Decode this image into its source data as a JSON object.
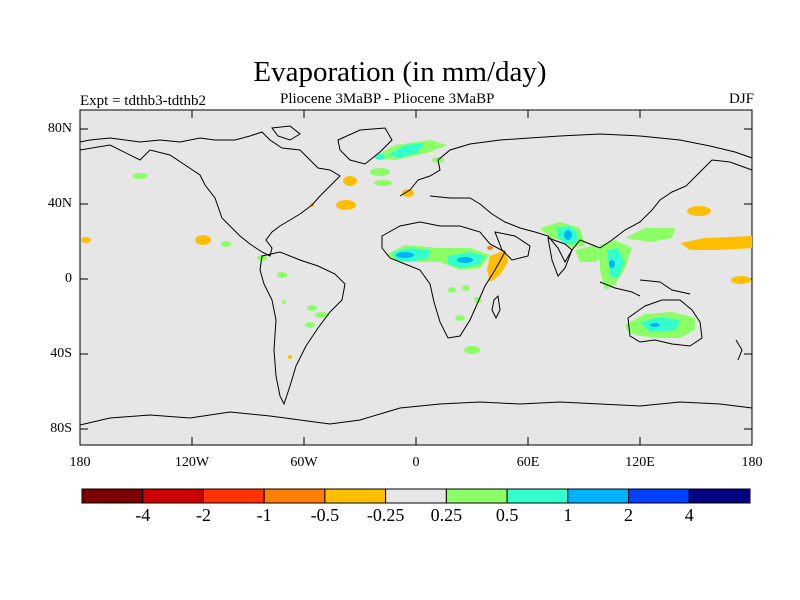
{
  "title": "Evaporation (in mm/day)",
  "experiment_label": "Expt = tdthb3-tdthb2",
  "subtitle": "Pliocene   3MaBP - Pliocene   3MaBP",
  "season": "DJF",
  "lat_ticks": [
    "80N",
    "40N",
    "0",
    "40S",
    "80S"
  ],
  "lon_ticks": [
    "180",
    "120W",
    "60W",
    "0",
    "60E",
    "120E",
    "180"
  ],
  "colorbar": {
    "colors": [
      "#7a0000",
      "#cc0000",
      "#ff3300",
      "#ff7f00",
      "#ffbf00",
      "#e6e6e6",
      "#8cff66",
      "#33ffcc",
      "#00b3ff",
      "#0040ff",
      "#000080"
    ],
    "labels": [
      "-4",
      "-2",
      "-1",
      "-0.5",
      "-0.25",
      "0.25",
      "0.5",
      "1",
      "2",
      "4"
    ]
  },
  "map": {
    "background": "#e6e6e6",
    "coastline_color": "#000000"
  }
}
